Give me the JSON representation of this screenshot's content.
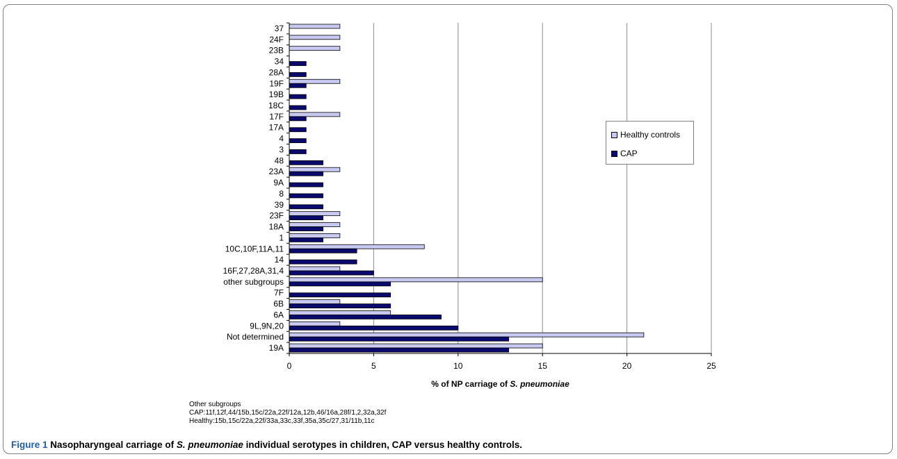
{
  "chart_data": {
    "type": "bar",
    "orientation": "horizontal",
    "categories": [
      "37",
      "24F",
      "23B",
      "34",
      "28A",
      "19F",
      "19B",
      "18C",
      "17F",
      "17A",
      "4",
      "3",
      "48",
      "23A",
      "9A",
      "8",
      "39",
      "23F",
      "18A",
      "1",
      "10C,10F,11A,11",
      "14",
      "16F,27,28A,31,4",
      "other subgroups",
      "7F",
      "6B",
      "6A",
      "9L,9N,20",
      "Not determined",
      "19A"
    ],
    "series": [
      {
        "name": "Healthy controls",
        "color": "#c7c9f0",
        "values": [
          3,
          3,
          3,
          0,
          0,
          3,
          0,
          0,
          3,
          0,
          0,
          0,
          0,
          3,
          0,
          0,
          0,
          3,
          3,
          3,
          8,
          0,
          3,
          15,
          0,
          3,
          6,
          3,
          21,
          15
        ]
      },
      {
        "name": "CAP",
        "color": "#0a0a6e",
        "values": [
          0,
          0,
          0,
          1,
          1,
          1,
          1,
          1,
          1,
          1,
          1,
          1,
          2,
          2,
          2,
          2,
          2,
          2,
          2,
          2,
          4,
          4,
          5,
          6,
          6,
          6,
          9,
          10,
          13,
          13
        ]
      }
    ],
    "xlim": [
      0,
      25
    ],
    "xticks": [
      "0",
      "5",
      "10",
      "15",
      "20",
      "25"
    ],
    "xlabel_prefix": "% of NP carriage of ",
    "xlabel_italic": "S. pneumoniae",
    "grid": true,
    "legend_position": "right"
  },
  "legend": {
    "healthy": "Healthy controls",
    "cap": "CAP"
  },
  "notes": {
    "line1": "Other subgroups",
    "line2": "CAP:11f,12f,44/15b,15c/22a,22f/12a,12b,46/16a,28f/1,2,32a,32f",
    "line3": "Healthy:15b,15c/22a,22f/33a,33c,33f,35a,35c/27,31/11b,11c"
  },
  "caption": {
    "label": "Figure 1",
    "text_before": " Nasopharyngeal carriage of ",
    "italic": "S. pneumoniae",
    "text_after": " individual serotypes in children, CAP versus healthy controls."
  }
}
